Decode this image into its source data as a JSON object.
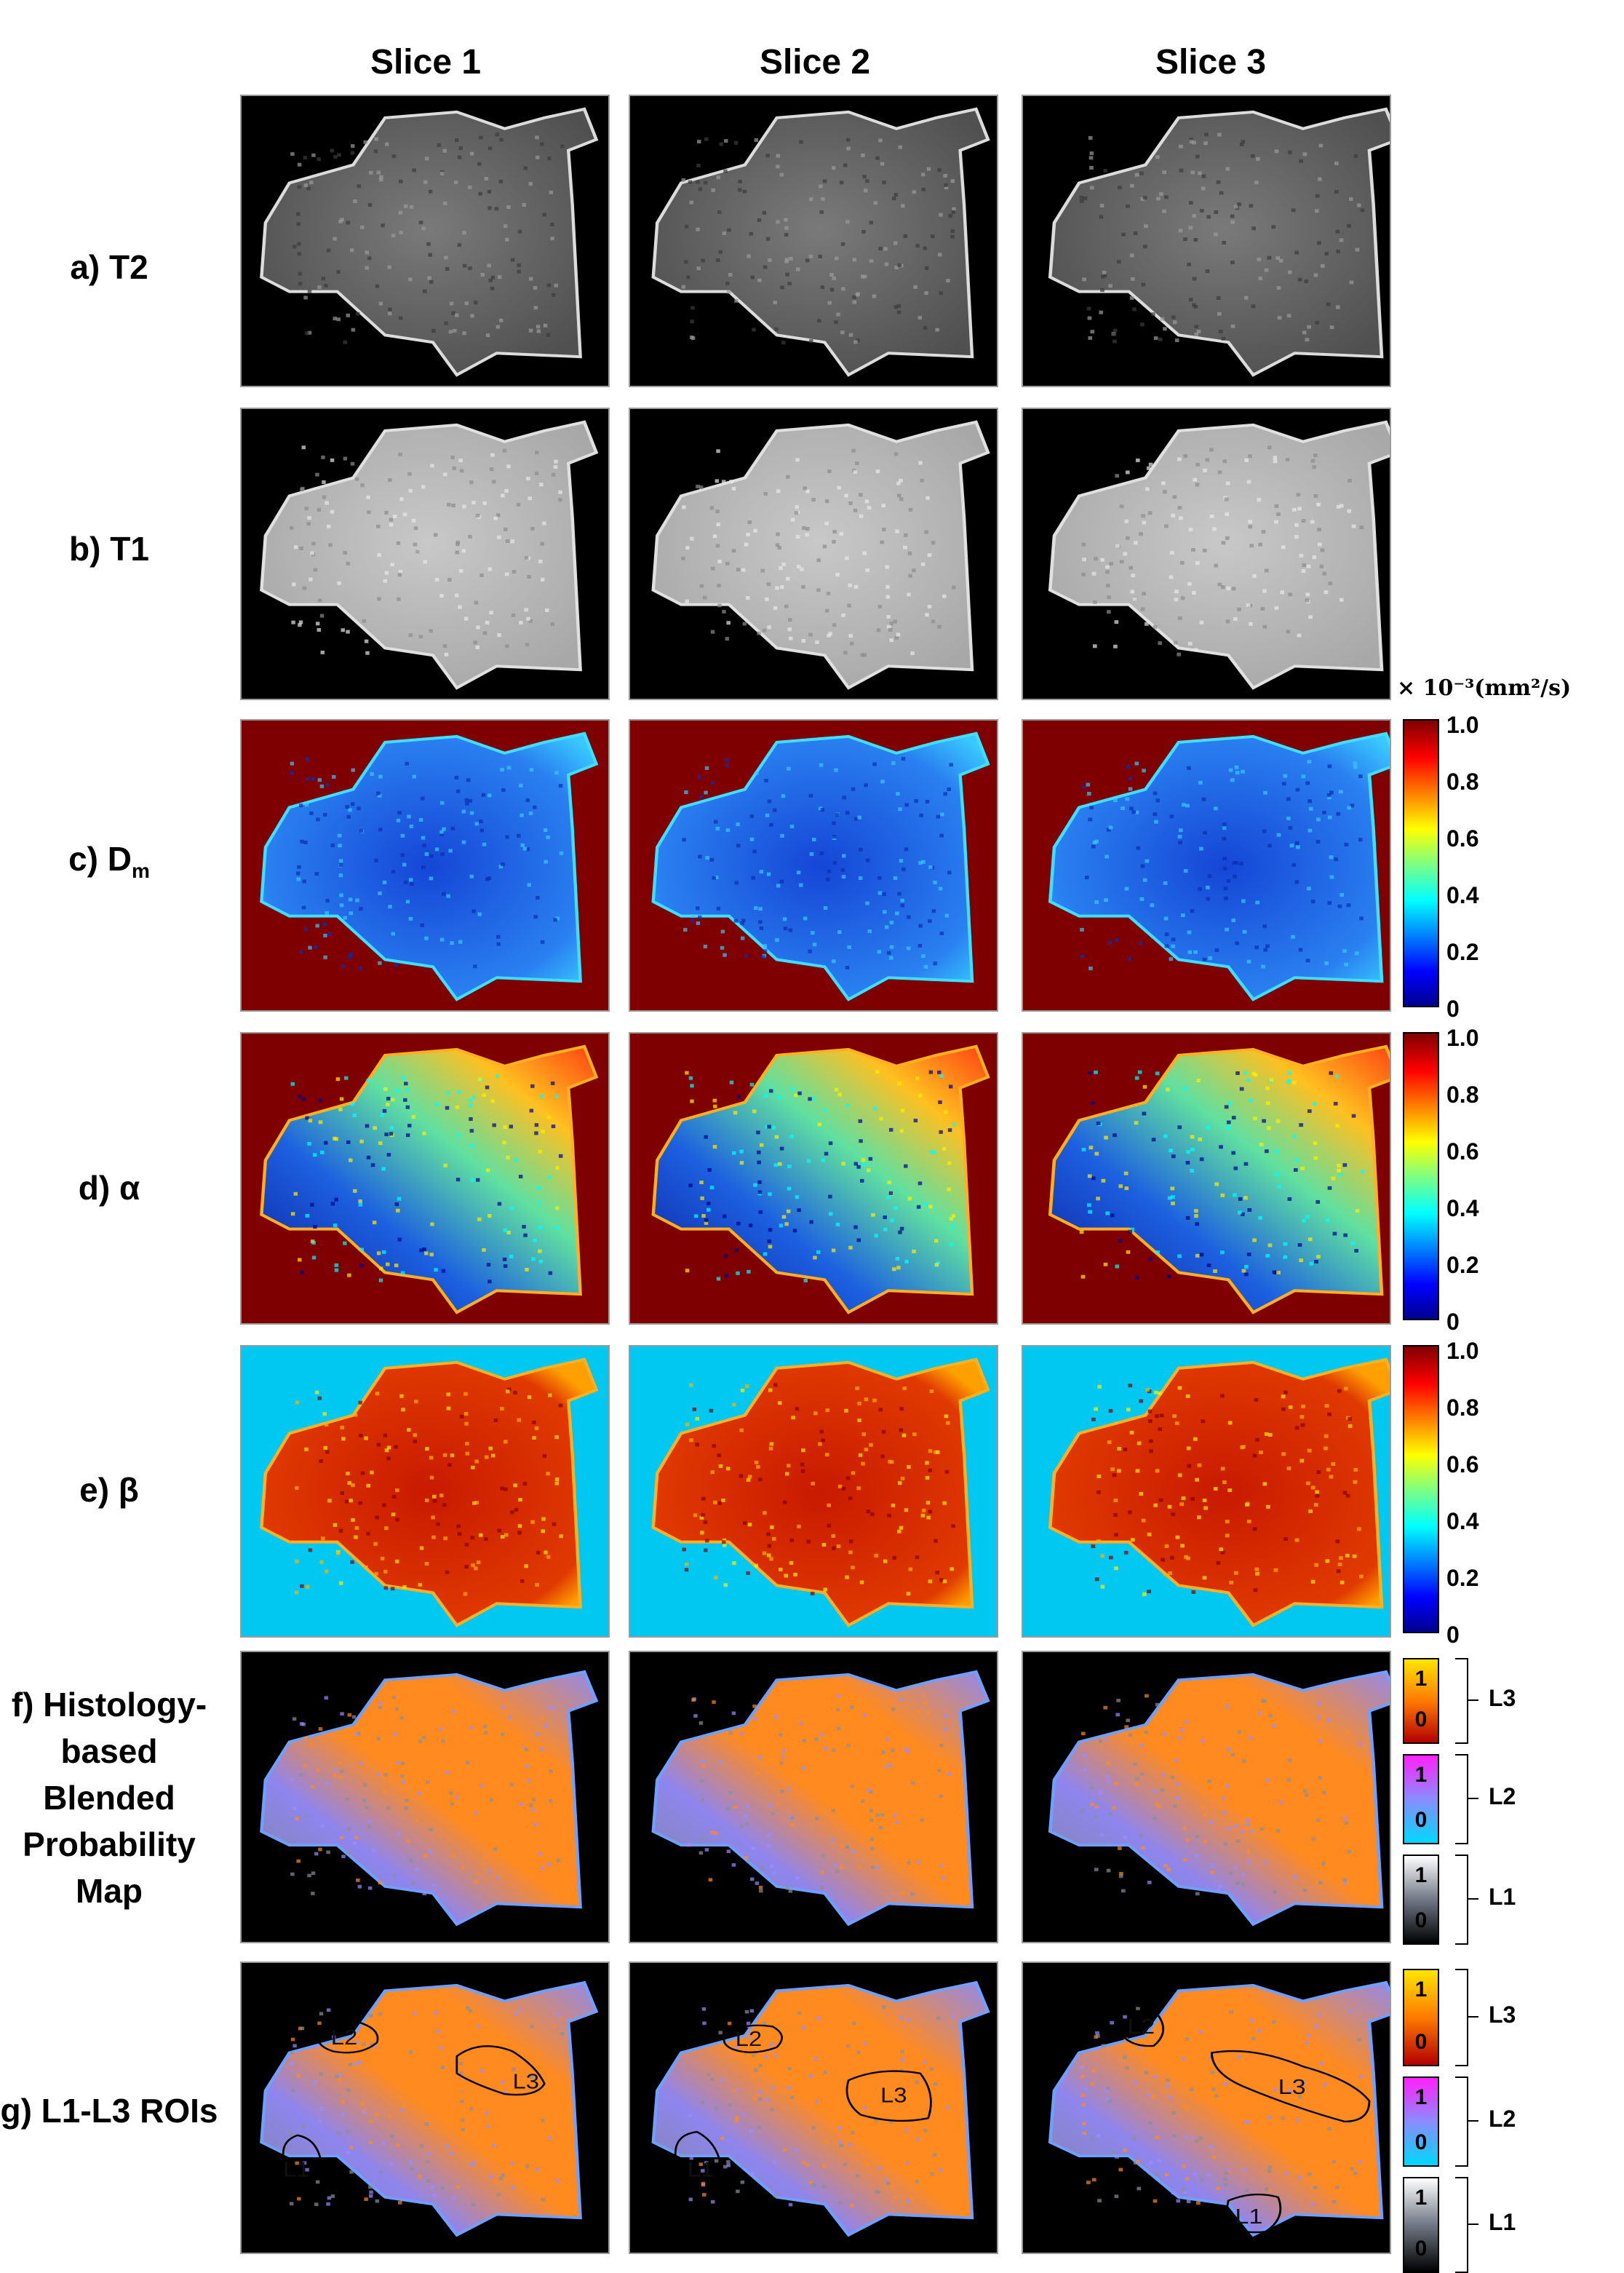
{
  "columns": [
    "Slice 1",
    "Slice 2",
    "Slice 3"
  ],
  "rows": {
    "t2": "a) T2",
    "t1": "b) T1",
    "dm": "c) D",
    "dm_sub": "m",
    "alpha": "d) α",
    "beta": "e) β",
    "hist_lines": [
      "f) Histology-",
      "based",
      "Blended",
      "Probability",
      "Map"
    ],
    "roi": "g) L1-L3 ROIs"
  },
  "colorbar": {
    "unit": "× 10⁻³(mm²/s)",
    "ticks": [
      "1.0",
      "0.8",
      "0.6",
      "0.4",
      "0.2",
      "0"
    ]
  },
  "prob_bars": {
    "levels": [
      "L3",
      "L2",
      "L1"
    ],
    "max": "1",
    "min": "0"
  },
  "roi_labels": [
    "L1",
    "L2",
    "L3"
  ],
  "colors": {
    "jet_dark_red": "#7f0000",
    "jet_cyan": "#00c8f0",
    "tissue_blue": "#1e63e6",
    "prob_orange": "#ff8a1f",
    "prob_violet": "#9a8cff",
    "prob_gray": "#8a8f99"
  }
}
